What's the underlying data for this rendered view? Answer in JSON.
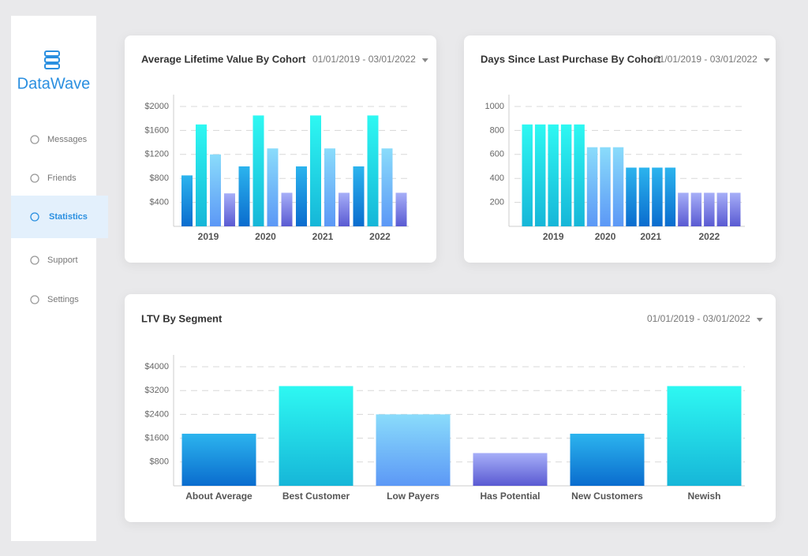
{
  "sidebar": {
    "brand": "DataWave",
    "menu": [
      "Messages",
      "Friends",
      "Statistics",
      "Support",
      "Settings"
    ],
    "active": 2
  },
  "chart_data": [
    {
      "type": "grouped_bar",
      "title": "Average Lifetime Value By Cohort",
      "date_range": "01/01/2019 - 03/01/2022",
      "categories": [
        "2019",
        "2020",
        "2021",
        "2022"
      ],
      "series": [
        {
          "colors": [
            "#2cb4ee",
            "#0a6cce"
          ],
          "values": [
            850,
            1000,
            1000,
            1000
          ]
        },
        {
          "colors": [
            "#2ef8f2",
            "#16b6d8"
          ],
          "values": [
            1700,
            1850,
            1850,
            1850
          ]
        },
        {
          "colors": [
            "#8adcfb",
            "#5c98f6"
          ],
          "values": [
            1200,
            1300,
            1300,
            1300
          ]
        },
        {
          "colors": [
            "#a6aef8",
            "#5a5ad2"
          ],
          "values": [
            550,
            560,
            560,
            560
          ]
        }
      ],
      "ylim": [
        0,
        2000
      ],
      "yticks": [
        {
          "value": 400,
          "label": "$400"
        },
        {
          "value": 800,
          "label": "$800"
        },
        {
          "value": 1200,
          "label": "$1200"
        },
        {
          "value": 1600,
          "label": "$1600"
        },
        {
          "value": 2000,
          "label": "$2000"
        }
      ],
      "grid": true
    },
    {
      "type": "cohort_bar",
      "title": "Days Since Last Purchase By Cohort",
      "date_range": "01/01/2019 - 03/01/2022",
      "categories": [
        "2019",
        "2020",
        "2021",
        "2022"
      ],
      "values": [
        [
          850,
          850,
          850,
          850,
          850
        ],
        [
          660,
          660,
          660
        ],
        [
          490,
          490,
          490,
          490
        ],
        [
          280,
          280,
          280,
          280,
          280
        ]
      ],
      "colors": [
        [
          "#2ef8f2",
          "#16b6d8"
        ],
        [
          "#8adcfb",
          "#5c98f6"
        ],
        [
          "#2cb4ee",
          "#0a6cce"
        ],
        [
          "#a6aef8",
          "#5a5ad2"
        ]
      ],
      "ylim": [
        0,
        1000
      ],
      "yticks": [
        200,
        400,
        600,
        800,
        1000
      ],
      "grid": true
    },
    {
      "type": "bar",
      "title": "LTV By Segment",
      "date_range": "01/01/2019 - 03/01/2022",
      "categories": [
        "About Average",
        "Best Customer",
        "Low Payers",
        "Has Potential",
        "New Customers",
        "Newish"
      ],
      "values": [
        1750,
        3350,
        2400,
        1100,
        1750,
        3350
      ],
      "colors": [
        [
          "#2cb4ee",
          "#0a6cce"
        ],
        [
          "#2ef8f2",
          "#16b6d8"
        ],
        [
          "#8adcfb",
          "#5c98f6"
        ],
        [
          "#a6aef8",
          "#5a5ad2"
        ],
        [
          "#2cb4ee",
          "#0a6cce"
        ],
        [
          "#2ef8f2",
          "#16b6d8"
        ]
      ],
      "ylim": [
        0,
        4000
      ],
      "yticks": [
        {
          "value": 800,
          "label": "$800"
        },
        {
          "value": 1600,
          "label": "$1600"
        },
        {
          "value": 2400,
          "label": "$2400"
        },
        {
          "value": 3200,
          "label": "$3200"
        },
        {
          "value": 4000,
          "label": "$4000"
        }
      ],
      "grid": true
    }
  ]
}
